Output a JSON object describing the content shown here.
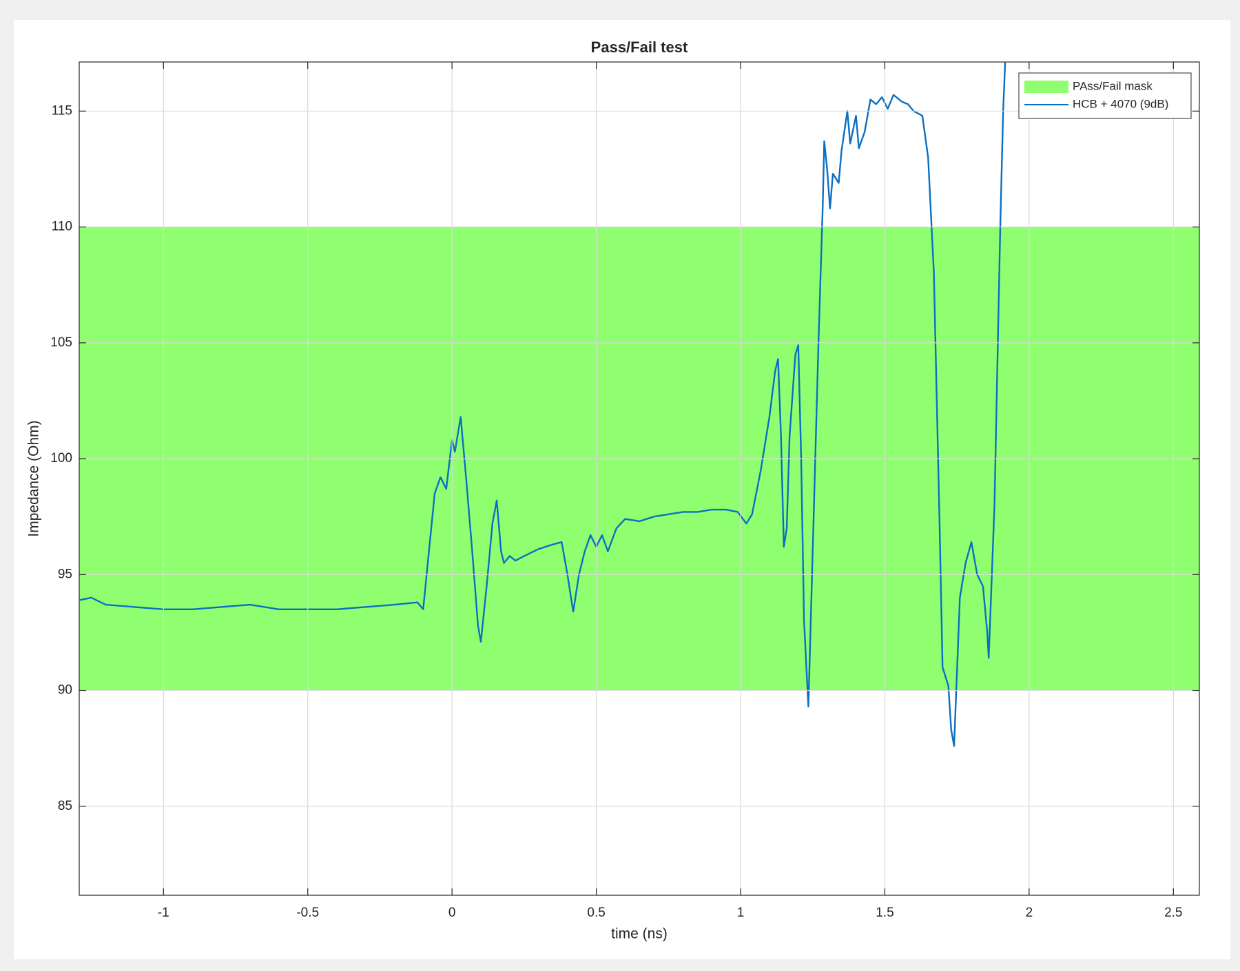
{
  "chart_data": {
    "type": "line",
    "title": "Pass/Fail test",
    "x_label": "time (ns)",
    "y_label": "Impedance (Ohm)",
    "xlim": [
      -1.292,
      2.59
    ],
    "ylim": [
      81.16,
      117.12
    ],
    "xticks": [
      -1,
      -0.5,
      0,
      0.5,
      1,
      1.5,
      2,
      2.5
    ],
    "yticks": [
      85,
      90,
      95,
      100,
      105,
      110,
      115
    ],
    "grid": true,
    "legend_position": "top-right",
    "bands": [
      {
        "name": "PAss/Fail mask",
        "color": "#8fff70",
        "range": [
          90,
          110
        ]
      }
    ],
    "series": [
      {
        "name": "HCB + 4070 (9dB)",
        "color": "#0a6fc2",
        "x": [
          -1.29,
          -1.25,
          -1.2,
          -1.1,
          -1.0,
          -0.9,
          -0.8,
          -0.7,
          -0.6,
          -0.5,
          -0.4,
          -0.3,
          -0.2,
          -0.12,
          -0.1,
          -0.08,
          -0.06,
          -0.04,
          -0.02,
          0.0,
          0.01,
          0.03,
          0.05,
          0.07,
          0.09,
          0.1,
          0.12,
          0.14,
          0.155,
          0.17,
          0.18,
          0.2,
          0.22,
          0.25,
          0.3,
          0.35,
          0.38,
          0.4,
          0.42,
          0.44,
          0.46,
          0.48,
          0.5,
          0.52,
          0.54,
          0.57,
          0.6,
          0.65,
          0.7,
          0.75,
          0.8,
          0.85,
          0.9,
          0.95,
          0.99,
          1.02,
          1.04,
          1.07,
          1.1,
          1.12,
          1.13,
          1.14,
          1.15,
          1.16,
          1.17,
          1.19,
          1.2,
          1.21,
          1.22,
          1.235,
          1.25,
          1.27,
          1.285,
          1.29,
          1.3,
          1.31,
          1.32,
          1.34,
          1.35,
          1.37,
          1.38,
          1.4,
          1.41,
          1.43,
          1.45,
          1.47,
          1.49,
          1.51,
          1.53,
          1.56,
          1.58,
          1.6,
          1.63,
          1.65,
          1.67,
          1.69,
          1.7,
          1.71,
          1.72,
          1.73,
          1.74,
          1.76,
          1.78,
          1.8,
          1.82,
          1.84,
          1.855,
          1.86,
          1.88,
          1.9,
          1.91,
          1.917
        ],
        "values": [
          93.9,
          94.0,
          93.7,
          93.6,
          93.5,
          93.5,
          93.6,
          93.7,
          93.5,
          93.5,
          93.5,
          93.6,
          93.7,
          93.8,
          93.5,
          96,
          98.5,
          99.2,
          98.7,
          100.8,
          100.3,
          101.8,
          99,
          96,
          92.8,
          92.1,
          94.5,
          97.2,
          98.2,
          96,
          95.5,
          95.8,
          95.6,
          95.8,
          96.1,
          96.3,
          96.4,
          95,
          93.4,
          95,
          96,
          96.7,
          96.2,
          96.7,
          96.0,
          97,
          97.4,
          97.3,
          97.5,
          97.6,
          97.7,
          97.7,
          97.8,
          97.8,
          97.7,
          97.2,
          97.6,
          99.5,
          101.8,
          103.8,
          104.3,
          101,
          96.2,
          97,
          101,
          104.5,
          104.9,
          100,
          93,
          89.3,
          96,
          105,
          111,
          113.7,
          112.5,
          110.8,
          112.3,
          111.9,
          113.3,
          115.0,
          113.6,
          114.8,
          113.4,
          114.1,
          115.5,
          115.3,
          115.6,
          115.1,
          115.7,
          115.4,
          115.3,
          115.0,
          114.8,
          113,
          108,
          97,
          91,
          90.6,
          90.2,
          88.3,
          87.6,
          94,
          95.5,
          96.4,
          95.0,
          94.5,
          92.5,
          91.4,
          98,
          110,
          115,
          117.1
        ]
      }
    ]
  }
}
